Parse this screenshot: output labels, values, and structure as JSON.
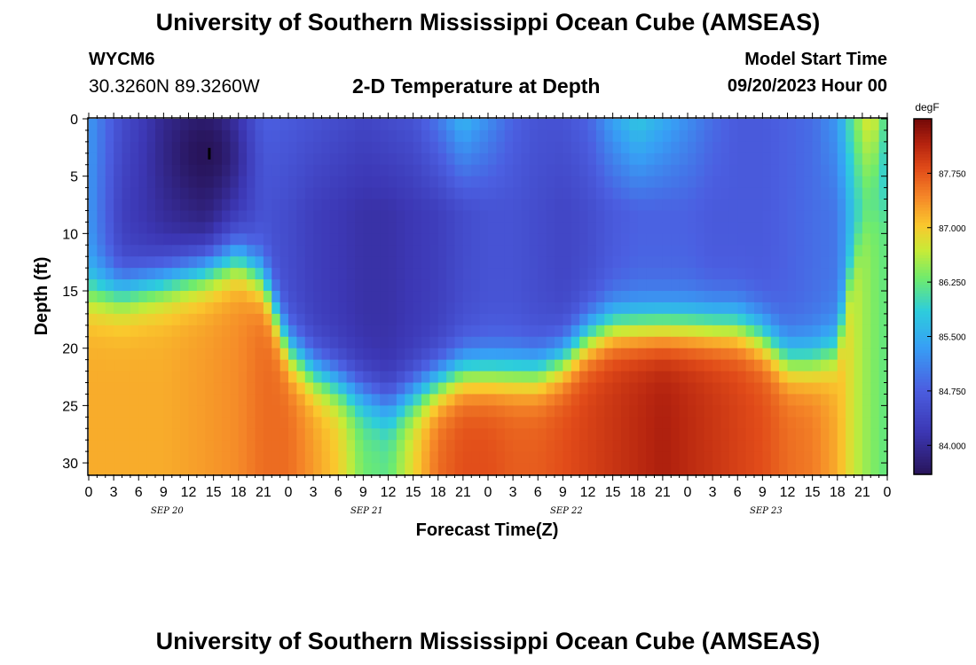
{
  "header": {
    "title": "University of Southern Mississippi Ocean Cube (AMSEAS)",
    "station_id": "WYCM6",
    "coords": "30.3260N  89.3260W",
    "plot_title": "2-D Temperature at Depth",
    "model_start_label": "Model Start Time",
    "model_start_time": "09/20/2023 Hour 00"
  },
  "footer": {
    "title": "University of Southern Mississippi Ocean Cube (AMSEAS)"
  },
  "chart_data": {
    "type": "heatmap",
    "title": "2-D Temperature at Depth",
    "xlabel": "Forecast Time(Z)",
    "ylabel": "Depth (ft)",
    "x_tick_labels": [
      "0",
      "3",
      "6",
      "9",
      "12",
      "15",
      "18",
      "21",
      "0",
      "3",
      "6",
      "9",
      "12",
      "15",
      "18",
      "21",
      "0",
      "3",
      "6",
      "9",
      "12",
      "15",
      "18",
      "21",
      "0",
      "3",
      "6",
      "9",
      "12",
      "15",
      "18",
      "21",
      "0"
    ],
    "date_labels": [
      {
        "label": "SEP 20",
        "hour": 9
      },
      {
        "label": "SEP 21",
        "hour": 33
      },
      {
        "label": "SEP 22",
        "hour": 57
      },
      {
        "label": "SEP 23",
        "hour": 81
      }
    ],
    "xlim_hours": [
      0,
      96
    ],
    "ylim_ft": [
      0,
      31
    ],
    "y_ticks": [
      "0",
      "5",
      "10",
      "15",
      "20",
      "25",
      "30"
    ],
    "colorbar": {
      "unit": "degF",
      "ticks": [
        "84.000",
        "84.750",
        "85.500",
        "86.250",
        "87.000",
        "87.750"
      ],
      "range": [
        83.6,
        88.5
      ]
    },
    "profiles": [
      {
        "t": 0,
        "surf": 85.3,
        "lay": 85.3,
        "thermo": 15,
        "deep": 87.2
      },
      {
        "t": 4,
        "surf": 84.5,
        "lay": 84.3,
        "thermo": 15,
        "deep": 87.2
      },
      {
        "t": 9,
        "surf": 84.0,
        "lay": 84.0,
        "thermo": 14,
        "deep": 87.2
      },
      {
        "t": 14,
        "surf": 83.9,
        "lay": 83.8,
        "thermo": 13,
        "deep": 87.3
      },
      {
        "t": 18,
        "surf": 84.3,
        "lay": 84.2,
        "thermo": 12,
        "deep": 87.4
      },
      {
        "t": 21,
        "surf": 84.8,
        "lay": 84.6,
        "thermo": 14,
        "deep": 87.6
      },
      {
        "t": 24,
        "surf": 84.7,
        "lay": 84.5,
        "thermo": 20,
        "deep": 87.6
      },
      {
        "t": 27,
        "surf": 84.6,
        "lay": 84.3,
        "thermo": 22,
        "deep": 87.3
      },
      {
        "t": 30,
        "surf": 84.5,
        "lay": 84.2,
        "thermo": 23,
        "deep": 87.0
      },
      {
        "t": 33,
        "surf": 84.4,
        "lay": 84.1,
        "thermo": 24,
        "deep": 86.3
      },
      {
        "t": 36,
        "surf": 84.5,
        "lay": 84.1,
        "thermo": 25,
        "deep": 86.2
      },
      {
        "t": 39,
        "surf": 84.6,
        "lay": 84.2,
        "thermo": 24,
        "deep": 86.9
      },
      {
        "t": 42,
        "surf": 85.0,
        "lay": 84.3,
        "thermo": 23,
        "deep": 87.6
      },
      {
        "t": 45,
        "surf": 85.6,
        "lay": 84.5,
        "thermo": 22,
        "deep": 87.8
      },
      {
        "t": 48,
        "surf": 85.2,
        "lay": 84.6,
        "thermo": 22,
        "deep": 87.8
      },
      {
        "t": 51,
        "surf": 84.8,
        "lay": 84.6,
        "thermo": 22,
        "deep": 87.7
      },
      {
        "t": 54,
        "surf": 84.6,
        "lay": 84.5,
        "thermo": 22,
        "deep": 87.7
      },
      {
        "t": 57,
        "surf": 84.6,
        "lay": 84.4,
        "thermo": 21,
        "deep": 87.8
      },
      {
        "t": 60,
        "surf": 84.8,
        "lay": 84.5,
        "thermo": 19,
        "deep": 87.9
      },
      {
        "t": 63,
        "surf": 85.4,
        "lay": 84.7,
        "thermo": 18,
        "deep": 88.0
      },
      {
        "t": 66,
        "surf": 85.8,
        "lay": 84.8,
        "thermo": 18,
        "deep": 88.1
      },
      {
        "t": 69,
        "surf": 85.5,
        "lay": 84.8,
        "thermo": 18,
        "deep": 88.2
      },
      {
        "t": 72,
        "surf": 85.2,
        "lay": 84.8,
        "thermo": 18,
        "deep": 88.1
      },
      {
        "t": 75,
        "surf": 84.9,
        "lay": 84.7,
        "thermo": 18,
        "deep": 88.0
      },
      {
        "t": 78,
        "surf": 84.7,
        "lay": 84.7,
        "thermo": 18,
        "deep": 87.9
      },
      {
        "t": 81,
        "surf": 84.7,
        "lay": 84.7,
        "thermo": 19,
        "deep": 87.8
      },
      {
        "t": 84,
        "surf": 84.8,
        "lay": 84.8,
        "thermo": 21,
        "deep": 87.6
      },
      {
        "t": 87,
        "surf": 84.9,
        "lay": 84.9,
        "thermo": 21,
        "deep": 87.5
      },
      {
        "t": 90,
        "surf": 85.3,
        "lay": 85.0,
        "thermo": 20,
        "deep": 87.2
      },
      {
        "t": 92,
        "surf": 86.3,
        "lay": 85.8,
        "thermo": 12,
        "deep": 86.7
      },
      {
        "t": 94,
        "surf": 86.9,
        "lay": 86.2,
        "thermo": 8,
        "deep": 86.4
      },
      {
        "t": 96,
        "surf": 86.0,
        "lay": 85.4,
        "thermo": 6,
        "deep": 86.2
      }
    ],
    "cold_core": {
      "t": 14,
      "depth": 3,
      "min_temp": 83.6
    },
    "marker": {
      "t": 14.5,
      "depth": 3
    }
  }
}
